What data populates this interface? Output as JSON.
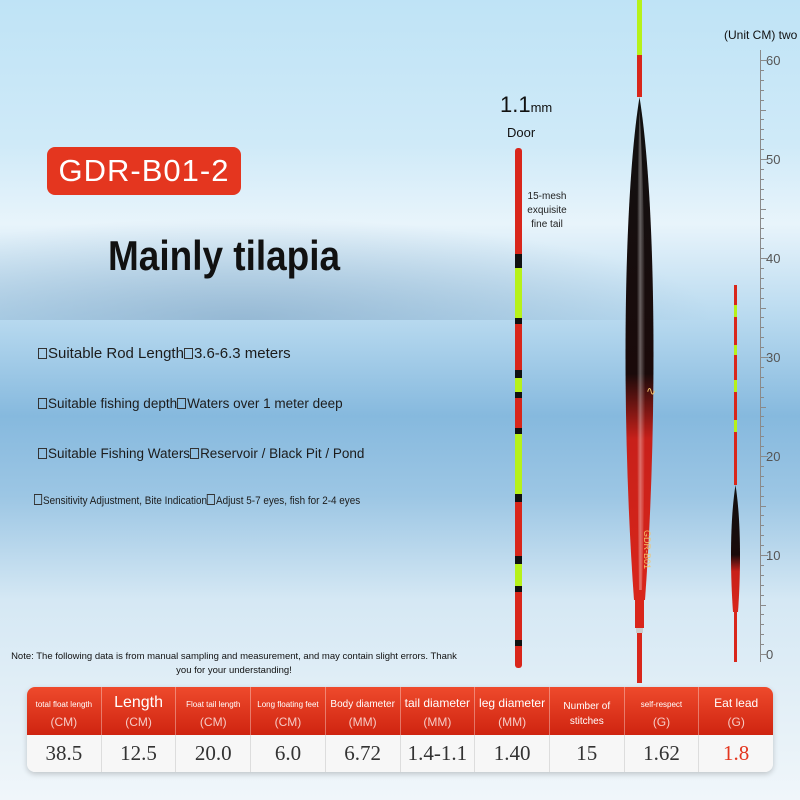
{
  "product": {
    "model": "GDR-B01-2",
    "headline": "Mainly tilapia"
  },
  "specs": [
    {
      "label": "Suitable Rod Length",
      "value": "3.6-6.3 meters"
    },
    {
      "label": "Suitable fishing depth",
      "value": "Waters over 1 meter deep"
    },
    {
      "label": "Suitable Fishing Waters",
      "value": "Reservoir / Black Pit / Pond"
    },
    {
      "label": "Sensitivity Adjustment, Bite Indication",
      "value": "Adjust 5-7 eyes, fish for 2-4 eyes"
    }
  ],
  "diagram": {
    "tip_size": "1.1",
    "tip_unit": "mm",
    "door_label": "Door",
    "tail_note": "15-mesh exquisite fine tail",
    "float_print": "GDR-B01",
    "unit_label": "(Unit CM) two",
    "ruler_marks": [
      "60",
      "50",
      "40",
      "30",
      "20",
      "10",
      "0"
    ]
  },
  "note": "Note: The following data is from manual sampling and measurement, and may contain slight errors. Thank you for your understanding!",
  "table": {
    "headers": [
      {
        "name": "total float length",
        "unit": "(CM)"
      },
      {
        "name": "Length",
        "unit": "(CM)"
      },
      {
        "name": "Float tail length",
        "unit": "(CM)"
      },
      {
        "name": "Long floating feet",
        "unit": "(CM)"
      },
      {
        "name": "Body diameter",
        "unit": "(MM)"
      },
      {
        "name": "tail diameter",
        "unit": "(MM)"
      },
      {
        "name": "leg diameter",
        "unit": "(MM)"
      },
      {
        "name": "Number of stitches",
        "unit": ""
      },
      {
        "name": "self-respect",
        "unit": "(G)"
      },
      {
        "name": "Eat lead",
        "unit": "(G)"
      }
    ],
    "values": [
      "38.5",
      "12.5",
      "20.0",
      "6.0",
      "6.72",
      "1.4-1.1",
      "1.40",
      "15",
      "1.62",
      "1.8"
    ]
  },
  "colors": {
    "accent": "#e4361f",
    "float_red": "#d9261b",
    "float_black": "#111111",
    "tail_green": "#b6f21a"
  }
}
